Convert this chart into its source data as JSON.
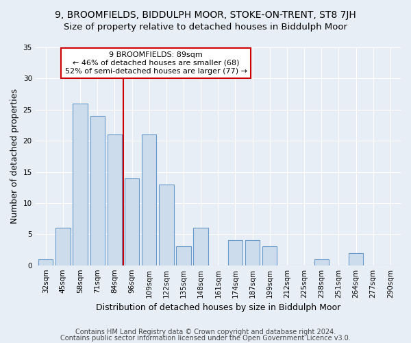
{
  "title": "9, BROOMFIELDS, BIDDULPH MOOR, STOKE-ON-TRENT, ST8 7JH",
  "subtitle": "Size of property relative to detached houses in Biddulph Moor",
  "xlabel": "Distribution of detached houses by size in Biddulph Moor",
  "ylabel": "Number of detached properties",
  "categories": [
    "32sqm",
    "45sqm",
    "58sqm",
    "71sqm",
    "84sqm",
    "96sqm",
    "109sqm",
    "122sqm",
    "135sqm",
    "148sqm",
    "161sqm",
    "174sqm",
    "187sqm",
    "199sqm",
    "212sqm",
    "225sqm",
    "238sqm",
    "251sqm",
    "264sqm",
    "277sqm",
    "290sqm"
  ],
  "values": [
    1,
    6,
    26,
    24,
    21,
    14,
    21,
    13,
    3,
    6,
    0,
    4,
    4,
    3,
    0,
    0,
    1,
    0,
    2,
    0,
    0
  ],
  "bar_color": "#ccdcec",
  "bar_edge_color": "#6699cc",
  "vline_x": 4.5,
  "vline_color": "#cc0000",
  "annotation_text": "9 BROOMFIELDS: 89sqm\n← 46% of detached houses are smaller (68)\n52% of semi-detached houses are larger (77) →",
  "annotation_box_color": "#ffffff",
  "annotation_box_edge_color": "#cc0000",
  "ylim": [
    0,
    35
  ],
  "yticks": [
    0,
    5,
    10,
    15,
    20,
    25,
    30,
    35
  ],
  "footer_line1": "Contains HM Land Registry data © Crown copyright and database right 2024.",
  "footer_line2": "Contains public sector information licensed under the Open Government Licence v3.0.",
  "background_color": "#e8eef5",
  "plot_bg_color": "#e8eef5",
  "title_fontsize": 10,
  "subtitle_fontsize": 9.5,
  "axis_label_fontsize": 9,
  "tick_fontsize": 7.5,
  "footer_fontsize": 7,
  "annotation_fontsize": 8
}
